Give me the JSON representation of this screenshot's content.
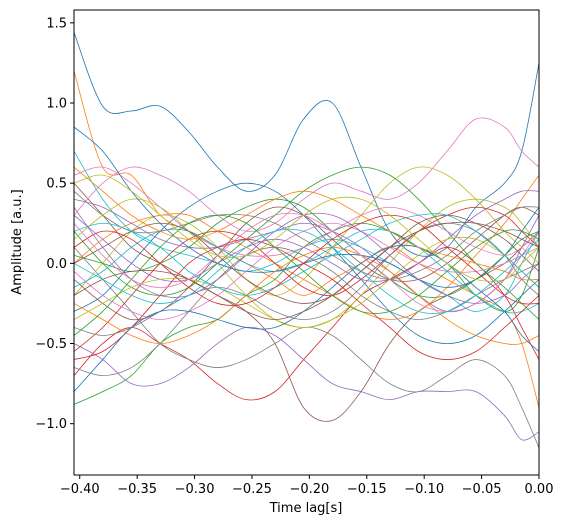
{
  "chart_data": {
    "type": "line",
    "title": "",
    "xlabel": "Time lag[s]",
    "ylabel": "Amplitude [a.u.]",
    "xlim": [
      -0.405,
      0.0
    ],
    "ylim": [
      -1.32,
      1.58
    ],
    "xticks": [
      -0.4,
      -0.35,
      -0.3,
      -0.25,
      -0.2,
      -0.15,
      -0.1,
      -0.05,
      0.0
    ],
    "xtick_labels": [
      "−0.40",
      "−0.35",
      "−0.30",
      "−0.25",
      "−0.20",
      "−0.15",
      "−0.10",
      "−0.05",
      "0.00"
    ],
    "yticks": [
      -1.0,
      -0.5,
      0.0,
      0.5,
      1.0,
      1.5
    ],
    "ytick_labels": [
      "−1.0",
      "−0.5",
      "0.0",
      "0.5",
      "1.0",
      "1.5"
    ],
    "grid": false,
    "legend": "none",
    "colors": [
      "#1f77b4",
      "#ff7f0e",
      "#2ca02c",
      "#d62728",
      "#9467bd",
      "#8c564b",
      "#e377c2",
      "#7f7f7f",
      "#bcbd22",
      "#17becf"
    ],
    "x": [
      -0.405,
      -0.38,
      -0.355,
      -0.33,
      -0.305,
      -0.28,
      -0.255,
      -0.23,
      -0.205,
      -0.18,
      -0.155,
      -0.13,
      -0.105,
      -0.08,
      -0.055,
      -0.03,
      -0.015,
      0.0
    ],
    "series": [
      {
        "values": [
          1.44,
          0.98,
          0.95,
          0.98,
          0.82,
          0.6,
          0.45,
          0.55,
          0.9,
          1.0,
          0.6,
          0.2,
          0.05,
          0.1,
          0.35,
          0.5,
          0.7,
          1.25
        ]
      },
      {
        "values": [
          1.2,
          0.6,
          0.55,
          0.3,
          0.2,
          0.1,
          0.0,
          -0.1,
          -0.2,
          -0.1,
          0.0,
          0.1,
          0.0,
          -0.1,
          -0.2,
          -0.3,
          -0.5,
          -0.9
        ]
      },
      {
        "values": [
          -0.88,
          -0.8,
          -0.7,
          -0.5,
          -0.4,
          -0.35,
          -0.2,
          -0.1,
          0.1,
          0.2,
          0.25,
          0.2,
          0.1,
          0.0,
          -0.2,
          -0.3,
          -0.2,
          0.1
        ]
      },
      {
        "values": [
          -0.7,
          -0.5,
          -0.4,
          -0.5,
          -0.6,
          -0.75,
          -0.85,
          -0.8,
          -0.6,
          -0.4,
          -0.2,
          -0.1,
          0.0,
          0.1,
          0.0,
          -0.2,
          -0.4,
          -0.6
        ]
      },
      {
        "values": [
          -0.5,
          -0.6,
          -0.75,
          -0.75,
          -0.65,
          -0.5,
          -0.4,
          -0.45,
          -0.6,
          -0.75,
          -0.8,
          -0.85,
          -0.8,
          -0.8,
          -0.8,
          -0.95,
          -1.1,
          -1.05
        ]
      },
      {
        "values": [
          0.5,
          0.3,
          0.1,
          0.0,
          -0.1,
          -0.2,
          -0.3,
          -0.5,
          -0.9,
          -0.98,
          -0.8,
          -0.5,
          -0.3,
          -0.2,
          -0.1,
          0.0,
          0.1,
          0.2
        ]
      },
      {
        "values": [
          0.3,
          0.5,
          0.6,
          0.55,
          0.45,
          0.3,
          0.2,
          0.25,
          0.4,
          0.5,
          0.45,
          0.4,
          0.5,
          0.7,
          0.9,
          0.85,
          0.7,
          0.6
        ]
      },
      {
        "values": [
          0.1,
          -0.1,
          -0.3,
          -0.5,
          -0.6,
          -0.65,
          -0.6,
          -0.5,
          -0.4,
          -0.45,
          -0.6,
          -0.75,
          -0.8,
          -0.7,
          -0.6,
          -0.7,
          -0.9,
          -1.15
        ]
      },
      {
        "values": [
          -0.2,
          0.0,
          0.2,
          0.3,
          0.25,
          0.1,
          -0.1,
          -0.2,
          -0.1,
          0.1,
          0.3,
          0.5,
          0.6,
          0.55,
          0.4,
          0.2,
          0.1,
          0.0
        ]
      },
      {
        "values": [
          0.7,
          0.4,
          0.2,
          0.1,
          0.05,
          0.0,
          -0.05,
          0.0,
          0.1,
          0.15,
          0.1,
          0.0,
          -0.1,
          -0.2,
          -0.3,
          -0.2,
          0.0,
          0.2
        ]
      },
      {
        "values": [
          -0.3,
          -0.2,
          0.0,
          0.2,
          0.35,
          0.45,
          0.5,
          0.45,
          0.3,
          0.1,
          -0.1,
          -0.3,
          -0.45,
          -0.5,
          -0.45,
          -0.3,
          -0.2,
          -0.1
        ]
      },
      {
        "values": [
          0.0,
          0.15,
          0.25,
          0.3,
          0.3,
          0.2,
          0.1,
          0.0,
          -0.1,
          -0.2,
          -0.3,
          -0.35,
          -0.3,
          -0.15,
          0.05,
          0.25,
          0.4,
          0.55
        ]
      },
      {
        "values": [
          0.2,
          0.0,
          -0.15,
          -0.2,
          -0.15,
          0.0,
          0.15,
          0.3,
          0.45,
          0.55,
          0.6,
          0.55,
          0.4,
          0.2,
          0.0,
          -0.15,
          -0.25,
          -0.35
        ]
      },
      {
        "values": [
          -0.55,
          -0.4,
          -0.2,
          0.0,
          0.15,
          0.2,
          0.15,
          0.0,
          -0.15,
          -0.2,
          -0.1,
          0.05,
          0.2,
          0.3,
          0.35,
          0.3,
          0.2,
          0.1
        ]
      },
      {
        "values": [
          0.4,
          0.35,
          0.25,
          0.15,
          0.1,
          0.1,
          0.15,
          0.2,
          0.25,
          0.2,
          0.1,
          -0.05,
          -0.2,
          -0.3,
          -0.25,
          -0.1,
          0.1,
          0.3
        ]
      },
      {
        "values": [
          -0.1,
          -0.25,
          -0.35,
          -0.3,
          -0.15,
          0.05,
          0.25,
          0.35,
          0.3,
          0.15,
          0.0,
          -0.1,
          -0.1,
          0.0,
          0.15,
          0.3,
          0.35,
          0.3
        ]
      },
      {
        "values": [
          0.55,
          0.6,
          0.5,
          0.35,
          0.2,
          0.1,
          0.05,
          0.05,
          0.1,
          0.2,
          0.3,
          0.35,
          0.3,
          0.2,
          0.1,
          0.05,
          0.1,
          0.2
        ]
      },
      {
        "values": [
          -0.4,
          -0.45,
          -0.4,
          -0.3,
          -0.2,
          -0.15,
          -0.2,
          -0.3,
          -0.35,
          -0.3,
          -0.15,
          0.05,
          0.2,
          0.25,
          0.2,
          0.05,
          -0.1,
          -0.2
        ]
      },
      {
        "values": [
          0.15,
          0.3,
          0.4,
          0.35,
          0.2,
          0.0,
          -0.2,
          -0.35,
          -0.4,
          -0.35,
          -0.2,
          0.0,
          0.2,
          0.35,
          0.4,
          0.35,
          0.25,
          0.1
        ]
      },
      {
        "values": [
          -0.15,
          -0.05,
          0.1,
          0.2,
          0.2,
          0.1,
          0.0,
          -0.05,
          0.0,
          0.1,
          0.2,
          0.2,
          0.1,
          -0.05,
          -0.2,
          -0.3,
          -0.3,
          -0.25
        ]
      },
      {
        "values": [
          0.85,
          0.7,
          0.45,
          0.25,
          0.1,
          0.0,
          -0.05,
          -0.05,
          0.0,
          0.05,
          0.05,
          0.0,
          -0.1,
          -0.15,
          -0.1,
          0.05,
          0.2,
          0.35
        ]
      },
      {
        "values": [
          -0.25,
          -0.35,
          -0.45,
          -0.5,
          -0.45,
          -0.35,
          -0.2,
          -0.05,
          0.05,
          0.1,
          0.05,
          -0.05,
          -0.2,
          -0.35,
          -0.45,
          -0.5,
          -0.5,
          -0.45
        ]
      },
      {
        "values": [
          0.05,
          0.0,
          -0.05,
          0.0,
          0.1,
          0.25,
          0.35,
          0.4,
          0.35,
          0.2,
          0.05,
          -0.1,
          -0.2,
          -0.2,
          -0.1,
          0.05,
          0.15,
          0.2
        ]
      },
      {
        "values": [
          -0.6,
          -0.55,
          -0.4,
          -0.2,
          0.0,
          0.1,
          0.15,
          0.1,
          0.0,
          -0.1,
          -0.25,
          -0.4,
          -0.55,
          -0.6,
          -0.55,
          -0.4,
          -0.3,
          -0.2
        ]
      },
      {
        "values": [
          0.3,
          0.15,
          0.0,
          -0.1,
          -0.1,
          0.0,
          0.1,
          0.15,
          0.1,
          0.0,
          -0.1,
          -0.1,
          0.0,
          0.15,
          0.3,
          0.4,
          0.45,
          0.45
        ]
      },
      {
        "values": [
          0.0,
          0.1,
          0.2,
          0.25,
          0.2,
          0.05,
          -0.1,
          -0.2,
          -0.25,
          -0.2,
          -0.05,
          0.1,
          0.25,
          0.3,
          0.25,
          0.15,
          0.05,
          -0.05
        ]
      },
      {
        "values": [
          -0.05,
          -0.2,
          -0.3,
          -0.35,
          -0.3,
          -0.2,
          -0.05,
          0.1,
          0.2,
          0.25,
          0.2,
          0.1,
          0.0,
          -0.05,
          -0.05,
          0.0,
          0.05,
          0.1
        ]
      },
      {
        "values": [
          0.45,
          0.3,
          0.2,
          0.2,
          0.25,
          0.3,
          0.3,
          0.25,
          0.15,
          0.05,
          -0.05,
          -0.1,
          -0.05,
          0.05,
          0.2,
          0.3,
          0.35,
          0.35
        ]
      },
      {
        "values": [
          -0.35,
          -0.25,
          -0.15,
          -0.1,
          -0.1,
          -0.15,
          -0.25,
          -0.35,
          -0.4,
          -0.35,
          -0.25,
          -0.1,
          0.05,
          0.15,
          0.15,
          0.05,
          -0.05,
          -0.15
        ]
      },
      {
        "values": [
          0.2,
          0.25,
          0.2,
          0.1,
          -0.05,
          -0.15,
          -0.2,
          -0.15,
          -0.05,
          0.05,
          0.15,
          0.25,
          0.3,
          0.3,
          0.2,
          0.05,
          -0.05,
          -0.15
        ]
      },
      {
        "values": [
          -0.8,
          -0.6,
          -0.4,
          -0.3,
          -0.3,
          -0.35,
          -0.4,
          -0.4,
          -0.3,
          -0.15,
          0.0,
          0.1,
          0.1,
          0.0,
          -0.15,
          -0.3,
          -0.45,
          -0.55
        ]
      },
      {
        "values": [
          0.6,
          0.45,
          0.3,
          0.2,
          0.15,
          0.2,
          0.3,
          0.4,
          0.45,
          0.4,
          0.3,
          0.2,
          0.1,
          0.05,
          0.0,
          -0.05,
          -0.1,
          -0.1
        ]
      },
      {
        "values": [
          -0.45,
          -0.3,
          -0.1,
          0.1,
          0.25,
          0.3,
          0.25,
          0.1,
          -0.05,
          -0.2,
          -0.3,
          -0.3,
          -0.2,
          -0.05,
          0.1,
          0.2,
          0.2,
          0.15
        ]
      },
      {
        "values": [
          0.1,
          0.2,
          0.15,
          0.0,
          -0.15,
          -0.25,
          -0.25,
          -0.15,
          0.0,
          0.15,
          0.25,
          0.3,
          0.25,
          0.1,
          -0.05,
          -0.2,
          -0.25,
          -0.25
        ]
      },
      {
        "values": [
          0.35,
          0.1,
          -0.1,
          -0.2,
          -0.2,
          -0.1,
          0.05,
          0.2,
          0.3,
          0.3,
          0.2,
          0.05,
          -0.1,
          -0.2,
          -0.25,
          -0.2,
          -0.1,
          0.0
        ]
      },
      {
        "values": [
          -0.2,
          -0.1,
          -0.05,
          -0.05,
          -0.1,
          -0.2,
          -0.3,
          -0.35,
          -0.3,
          -0.2,
          -0.05,
          0.1,
          0.2,
          0.25,
          0.25,
          0.2,
          0.15,
          0.1
        ]
      },
      {
        "values": [
          0.25,
          0.05,
          -0.1,
          -0.15,
          -0.1,
          0.05,
          0.2,
          0.3,
          0.3,
          0.2,
          0.05,
          -0.1,
          -0.25,
          -0.3,
          -0.25,
          -0.1,
          0.05,
          0.2
        ]
      },
      {
        "values": [
          -0.65,
          -0.7,
          -0.65,
          -0.5,
          -0.3,
          -0.1,
          0.05,
          0.1,
          0.05,
          -0.05,
          -0.2,
          -0.3,
          -0.35,
          -0.3,
          -0.2,
          -0.1,
          -0.05,
          0.0
        ]
      },
      {
        "values": [
          0.5,
          0.55,
          0.45,
          0.3,
          0.15,
          0.05,
          0.05,
          0.15,
          0.3,
          0.4,
          0.4,
          0.3,
          0.15,
          0.0,
          -0.1,
          -0.1,
          0.0,
          0.1
        ]
      },
      {
        "values": [
          0.0,
          -0.1,
          -0.2,
          -0.25,
          -0.2,
          -0.05,
          0.1,
          0.2,
          0.2,
          0.1,
          -0.05,
          -0.2,
          -0.3,
          -0.3,
          -0.2,
          -0.05,
          0.05,
          0.15
        ]
      }
    ]
  }
}
